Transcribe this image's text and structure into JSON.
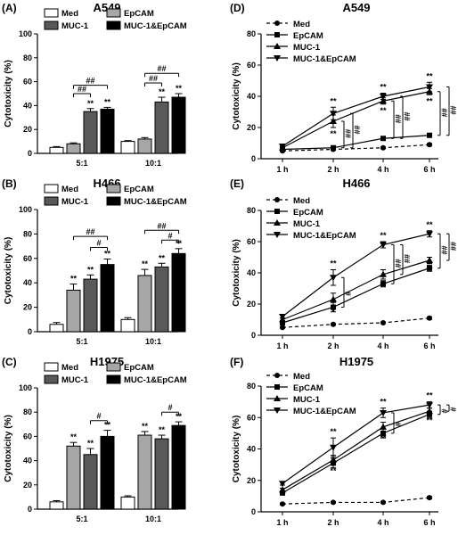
{
  "chart_data": [
    {
      "id": "A",
      "panel_label": "(A)",
      "title": "A549",
      "type": "bar",
      "ylabel": "Cytotoxicity (%)",
      "ylim": [
        0,
        100
      ],
      "yticks": [
        0,
        20,
        40,
        60,
        80,
        100
      ],
      "categories": [
        "5:1",
        "10:1"
      ],
      "series": [
        {
          "name": "Med",
          "color": "#ffffff",
          "values": [
            5,
            10
          ],
          "errors": [
            0.7,
            0.7
          ]
        },
        {
          "name": "EpCAM",
          "color": "#a6a6a6",
          "values": [
            8,
            12
          ],
          "errors": [
            0.8,
            1.2
          ]
        },
        {
          "name": "MUC-1",
          "color": "#595959",
          "values": [
            35,
            43
          ],
          "errors": [
            2.5,
            4
          ]
        },
        {
          "name": "MUC-1&EpCAM",
          "color": "#000000",
          "values": [
            37,
            47
          ],
          "errors": [
            1.5,
            3
          ]
        }
      ],
      "star_labels": [
        "**",
        "**"
      ],
      "brackets": [
        {
          "group": 0,
          "from": 1,
          "to": 2,
          "y": 50,
          "label": "##"
        },
        {
          "group": 0,
          "from": 1,
          "to": 3,
          "y": 57,
          "label": "##"
        },
        {
          "group": 1,
          "from": 1,
          "to": 2,
          "y": 59,
          "label": "##"
        },
        {
          "group": 1,
          "from": 1,
          "to": 3,
          "y": 67,
          "label": "##"
        }
      ]
    },
    {
      "id": "B",
      "panel_label": "(B)",
      "title": "H466",
      "type": "bar",
      "ylabel": "Cytotoxicity (%)",
      "ylim": [
        0,
        100
      ],
      "yticks": [
        0,
        20,
        40,
        60,
        80,
        100
      ],
      "categories": [
        "5:1",
        "10:1"
      ],
      "series": [
        {
          "name": "Med",
          "color": "#ffffff",
          "values": [
            6,
            10
          ],
          "errors": [
            1.5,
            1.5
          ]
        },
        {
          "name": "EpCAM",
          "color": "#a6a6a6",
          "values": [
            34,
            46
          ],
          "errors": [
            5,
            5
          ]
        },
        {
          "name": "MUC-1",
          "color": "#595959",
          "values": [
            43,
            53
          ],
          "errors": [
            3.5,
            3
          ]
        },
        {
          "name": "MUC-1&EpCAM",
          "color": "#000000",
          "values": [
            55,
            64
          ],
          "errors": [
            4.5,
            4
          ]
        }
      ],
      "star_labels": [
        "**",
        "**"
      ],
      "brackets": [
        {
          "group": 0,
          "from": 2,
          "to": 3,
          "y": 69,
          "label": "#"
        },
        {
          "group": 0,
          "from": 1,
          "to": 3,
          "y": 78,
          "label": "##"
        },
        {
          "group": 1,
          "from": 2,
          "to": 3,
          "y": 75,
          "label": "#"
        },
        {
          "group": 1,
          "from": 1,
          "to": 3,
          "y": 83,
          "label": "##"
        }
      ]
    },
    {
      "id": "C",
      "panel_label": "(C)",
      "title": "H1975",
      "type": "bar",
      "ylabel": "Cytotoxicity (%)",
      "ylim": [
        0,
        100
      ],
      "yticks": [
        0,
        20,
        40,
        60,
        80,
        100
      ],
      "categories": [
        "5:1",
        "10:1"
      ],
      "series": [
        {
          "name": "Med",
          "color": "#ffffff",
          "values": [
            6,
            10
          ],
          "errors": [
            1,
            1
          ]
        },
        {
          "name": "EpCAM",
          "color": "#a6a6a6",
          "values": [
            52,
            61
          ],
          "errors": [
            3,
            3
          ]
        },
        {
          "name": "MUC-1",
          "color": "#595959",
          "values": [
            45,
            58
          ],
          "errors": [
            5,
            3
          ]
        },
        {
          "name": "MUC-1&EpCAM",
          "color": "#000000",
          "values": [
            60,
            69
          ],
          "errors": [
            5,
            3
          ]
        }
      ],
      "star_labels": [
        "**",
        "**"
      ],
      "brackets": [
        {
          "group": 0,
          "from": 2,
          "to": 3,
          "y": 73,
          "label": "#"
        },
        {
          "group": 1,
          "from": 2,
          "to": 3,
          "y": 80,
          "label": "#"
        }
      ]
    },
    {
      "id": "D",
      "panel_label": "(D)",
      "title": "A549",
      "type": "line",
      "ylabel": "Cytotoxicity (%)",
      "ylim": [
        0,
        80
      ],
      "yticks": [
        0,
        20,
        40,
        60,
        80
      ],
      "x": [
        "1 h",
        "2 h",
        "4 h",
        "6 h"
      ],
      "series": [
        {
          "name": "Med",
          "marker": "circle",
          "dashed": true,
          "values": [
            5,
            6,
            7,
            9
          ],
          "errors": [
            0.5,
            0.5,
            0.5,
            0.8
          ]
        },
        {
          "name": "EpCAM",
          "marker": "square",
          "dashed": false,
          "values": [
            6,
            7,
            13,
            15
          ],
          "errors": [
            0.5,
            0.5,
            0.8,
            1
          ]
        },
        {
          "name": "MUC-1",
          "marker": "triangle-up",
          "dashed": false,
          "values": [
            7,
            24,
            37,
            43
          ],
          "errors": [
            1,
            4,
            2,
            2
          ]
        },
        {
          "name": "MUC-1&EpCAM",
          "marker": "triangle-down",
          "dashed": false,
          "values": [
            8,
            29,
            40,
            46
          ],
          "errors": [
            1,
            4,
            2,
            3
          ]
        }
      ],
      "star_labels": [
        "**",
        "**",
        "**",
        "**",
        "**",
        "**"
      ],
      "hash_marks": [
        {
          "x": 1,
          "y_from": 7,
          "y_to": 24,
          "label": "##",
          "offset": 12
        },
        {
          "x": 1,
          "y_from": 7,
          "y_to": 29,
          "label": "##",
          "offset": 22
        },
        {
          "x": 2,
          "y_from": 13,
          "y_to": 37,
          "label": "##",
          "offset": 12
        },
        {
          "x": 2,
          "y_from": 13,
          "y_to": 40,
          "label": "##",
          "offset": 22
        },
        {
          "x": 3,
          "y_from": 15,
          "y_to": 43,
          "label": "##",
          "offset": 12
        },
        {
          "x": 3,
          "y_from": 15,
          "y_to": 46,
          "label": "##",
          "offset": 22
        }
      ]
    },
    {
      "id": "E",
      "panel_label": "(E)",
      "title": "H466",
      "type": "line",
      "ylabel": "Cytotoxicity (%)",
      "ylim": [
        0,
        80
      ],
      "yticks": [
        0,
        20,
        40,
        60,
        80
      ],
      "x": [
        "1 h",
        "2 h",
        "4 h",
        "6 h"
      ],
      "series": [
        {
          "name": "Med",
          "marker": "circle",
          "dashed": true,
          "values": [
            5,
            7,
            8,
            11
          ],
          "errors": [
            0.5,
            0.5,
            0.5,
            0.8
          ]
        },
        {
          "name": "EpCAM",
          "marker": "square",
          "dashed": false,
          "values": [
            8,
            18,
            33,
            43
          ],
          "errors": [
            1,
            3,
            2,
            2
          ]
        },
        {
          "name": "MUC-1",
          "marker": "triangle-up",
          "dashed": false,
          "values": [
            10,
            23,
            39,
            48
          ],
          "errors": [
            1,
            4,
            3,
            2
          ]
        },
        {
          "name": "MUC-1&EpCAM",
          "marker": "triangle-down",
          "dashed": false,
          "values": [
            12,
            37,
            58,
            65
          ],
          "errors": [
            1,
            5,
            2,
            2
          ]
        }
      ],
      "star_labels": [
        "**",
        "*",
        "**",
        "**",
        "**",
        "**"
      ],
      "hash_marks": [
        {
          "x": 1,
          "y_from": 18,
          "y_to": 37,
          "label": "#",
          "offset": 12
        },
        {
          "x": 2,
          "y_from": 33,
          "y_to": 58,
          "label": "##",
          "offset": 12
        },
        {
          "x": 2,
          "y_from": 39,
          "y_to": 58,
          "label": "##",
          "offset": 22
        },
        {
          "x": 3,
          "y_from": 43,
          "y_to": 65,
          "label": "##",
          "offset": 12
        },
        {
          "x": 3,
          "y_from": 48,
          "y_to": 65,
          "label": "##",
          "offset": 22
        }
      ]
    },
    {
      "id": "F",
      "panel_label": "(F)",
      "title": "H1975",
      "type": "line",
      "ylabel": "Cytotoxicity (%)",
      "ylim": [
        0,
        80
      ],
      "yticks": [
        0,
        20,
        40,
        60,
        80
      ],
      "x": [
        "1 h",
        "2 h",
        "4 h",
        "6 h"
      ],
      "series": [
        {
          "name": "Med",
          "marker": "circle",
          "dashed": true,
          "values": [
            5,
            6,
            6,
            9
          ],
          "errors": [
            0.5,
            0.5,
            0.5,
            0.8
          ]
        },
        {
          "name": "EpCAM",
          "marker": "square",
          "dashed": false,
          "values": [
            12,
            31,
            50,
            62
          ],
          "errors": [
            1,
            3,
            3,
            2
          ]
        },
        {
          "name": "MUC-1",
          "marker": "triangle-up",
          "dashed": false,
          "values": [
            14,
            33,
            54,
            64
          ],
          "errors": [
            1,
            3,
            3,
            2
          ]
        },
        {
          "name": "MUC-1&EpCAM",
          "marker": "triangle-down",
          "dashed": false,
          "values": [
            18,
            41,
            63,
            68
          ],
          "errors": [
            1,
            6,
            3,
            2
          ]
        }
      ],
      "star_labels": [
        "**",
        "**",
        "**",
        "**",
        "**",
        "**"
      ],
      "hash_marks": [
        {
          "x": 2,
          "y_from": 50,
          "y_to": 63,
          "label": "#",
          "offset": 12
        },
        {
          "x": 3,
          "y_from": 62,
          "y_to": 68,
          "label": "#",
          "offset": 12
        },
        {
          "x": 3,
          "y_from": 64,
          "y_to": 68,
          "label": "#",
          "offset": 22
        }
      ]
    }
  ]
}
